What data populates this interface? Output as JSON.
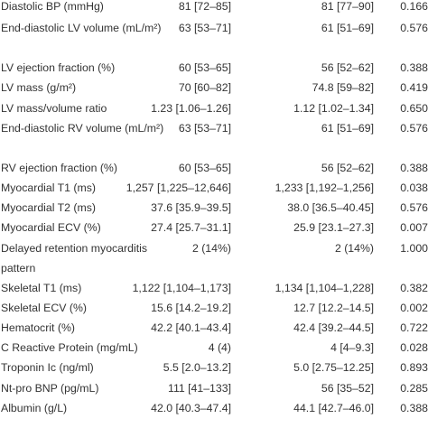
{
  "rows": [
    {
      "label": "Diastolic BP (mmHg)",
      "g1": "81 [72–85]",
      "g2": "81 [77–90]",
      "p": "0.166"
    },
    {
      "label": "End-diastolic LV volume (mL/m²)",
      "g1": "63 [53–71]",
      "g2": "61 [51–69]",
      "p": "0.576"
    },
    {
      "label": "LV ejection fraction (%)",
      "g1": "60 [53–65]",
      "g2": "56 [52–62]",
      "p": "0.388"
    },
    {
      "label": "LV mass (g/m²)",
      "g1": "70 [60–82]",
      "g2": "74.8 [59–82]",
      "p": "0.419"
    },
    {
      "label": "LV mass/volume ratio",
      "g1": "1.23 [1.06–1.26]",
      "g2": "1.12 [1.02–1.34]",
      "p": "0.650"
    },
    {
      "label": "End-diastolic RV volume (mL/m²)",
      "g1": "63 [53–71]",
      "g2": "61 [51–69]",
      "p": "0.576"
    },
    {
      "label": "RV ejection fraction (%)",
      "g1": "60 [53–65]",
      "g2": "56 [52–62]",
      "p": "0.388"
    },
    {
      "label": "Myocardial T1 (ms)",
      "g1": "1,257 [1,225–12,646]",
      "g2": "1,233 [1,192–1,256]",
      "p": "0.038"
    },
    {
      "label": "Myocardial T2 (ms)",
      "g1": "37.6 [35.9–39.5]",
      "g2": "38.0 [36.5–40.45]",
      "p": "0.576"
    },
    {
      "label": "Myocardial ECV (%)",
      "g1": "27.4 [25.7–31.1]",
      "g2": "25.9 [23.1–27.3]",
      "p": "0.007"
    },
    {
      "label": "Delayed retention myocarditis pattern",
      "g1": "2 (14%)",
      "g2": "2 (14%)",
      "p": "1.000"
    },
    {
      "label": "Skeletal T1 (ms)",
      "g1": "1,122 [1,104–1,173]",
      "g2": "1,134 [1,104–1,228]",
      "p": "0.382"
    },
    {
      "label": "Skeletal ECV (%)",
      "g1": "15.6 [14.2–19.2]",
      "g2": "12.7 [12.2–14.5]",
      "p": "0.002"
    },
    {
      "label": "Hematocrit (%)",
      "g1": "42.2 [40.1–43.4]",
      "g2": "42.4 [39.2–44.5]",
      "p": "0.722"
    },
    {
      "label": "C Reactive Protein (mg/mL)",
      "g1": "4 (4)",
      "g2": "4 [4–9.3]",
      "p": "0.028"
    },
    {
      "label": "Troponin Ic (ng/ml)",
      "g1": "5.5 [2.0–13.2]",
      "g2": "5.0 [2.75–12.25]",
      "p": "0.893"
    },
    {
      "label": "Nt-pro BNP (pg/mL)",
      "g1": "111 [41–133]",
      "g2": "56 [35–52]",
      "p": "0.285"
    },
    {
      "label": "Albumin (g/L)",
      "g1": "42.0 [40.3–47.4]",
      "g2": "44.1 [42.7–46.0]",
      "p": "0.388"
    }
  ]
}
